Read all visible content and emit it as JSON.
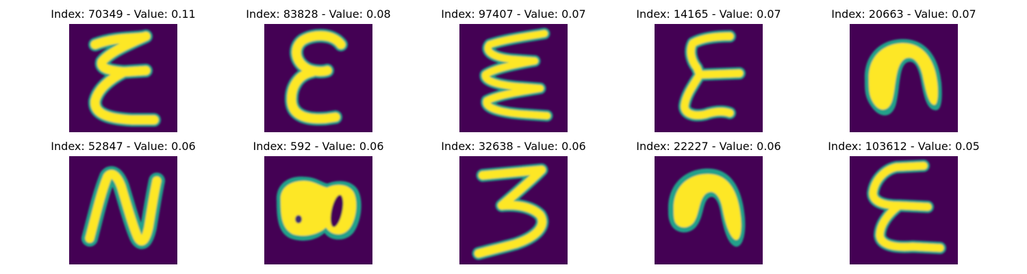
{
  "panels": [
    {
      "title": "Index: 70349 - Value: 0.11",
      "glyph": "glyph-e-tall"
    },
    {
      "title": "Index: 83828 - Value: 0.08",
      "glyph": "glyph-e-round"
    },
    {
      "title": "Index: 97407 - Value: 0.07",
      "glyph": "glyph-e-wavy"
    },
    {
      "title": "Index: 14165 - Value: 0.07",
      "glyph": "glyph-e-narrow"
    },
    {
      "title": "Index: 20663 - Value: 0.07",
      "glyph": "glyph-arch"
    },
    {
      "title": "Index: 52847 - Value: 0.06",
      "glyph": "glyph-n"
    },
    {
      "title": "Index: 592 - Value: 0.06",
      "glyph": "glyph-blob-double"
    },
    {
      "title": "Index: 32638 - Value: 0.06",
      "glyph": "glyph-3"
    },
    {
      "title": "Index: 22227 - Value: 0.06",
      "glyph": "glyph-arch-filled"
    },
    {
      "title": "Index: 103612 - Value: 0.05",
      "glyph": "glyph-e-sharp"
    }
  ],
  "colors": {
    "background": "#440154",
    "stroke": "#fde725",
    "edge": "#21a08a"
  }
}
